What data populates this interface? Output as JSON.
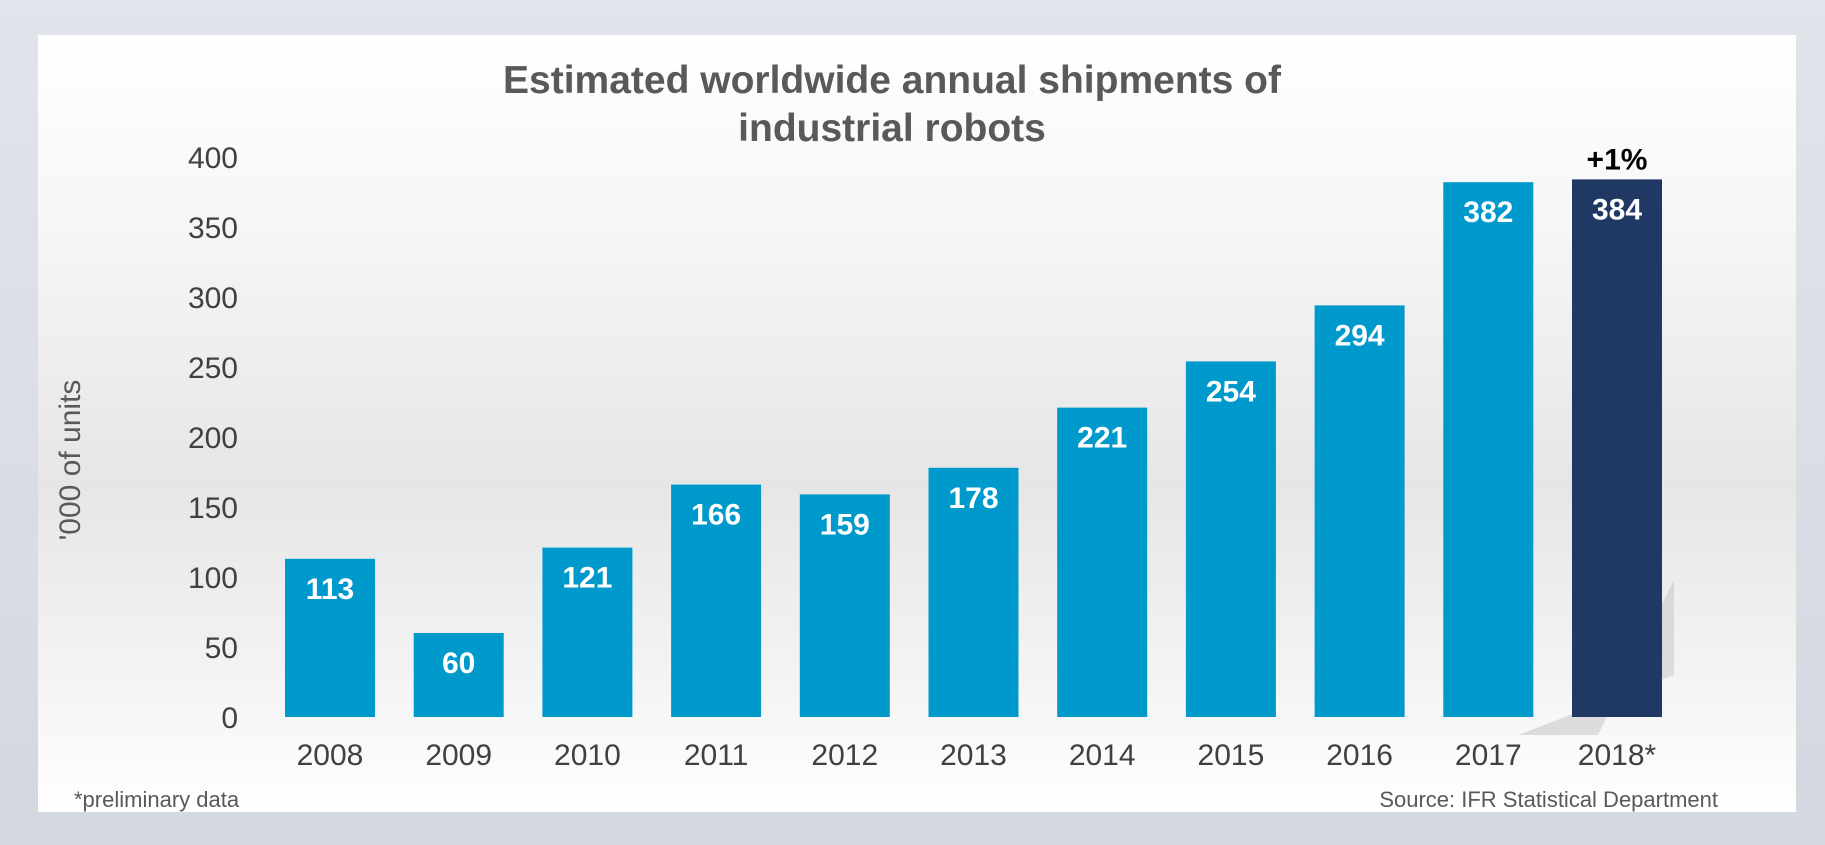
{
  "chart_data": {
    "type": "bar",
    "title_lines": [
      "Estimated worldwide annual shipments of",
      "industrial robots"
    ],
    "ylabel": "'000 of units",
    "xlabel": "",
    "ylim": [
      0,
      400
    ],
    "yticks": [
      "0",
      "50",
      "100",
      "150",
      "200",
      "250",
      "300",
      "350",
      "400"
    ],
    "ytick_values": [
      0,
      50,
      100,
      150,
      200,
      250,
      300,
      350,
      400
    ],
    "categories": [
      "2008",
      "2009",
      "2010",
      "2011",
      "2012",
      "2013",
      "2014",
      "2015",
      "2016",
      "2017",
      "2018*"
    ],
    "values": [
      113,
      60,
      121,
      166,
      159,
      178,
      221,
      254,
      294,
      382,
      384
    ],
    "value_labels": [
      "113",
      "60",
      "121",
      "166",
      "159",
      "178",
      "221",
      "254",
      "294",
      "382",
      "384"
    ],
    "highlight_index": 10,
    "growth_annotation": "+1%",
    "legend": "none",
    "grid": false
  },
  "colors": {
    "bar": "#0099cc",
    "highlight_bar": "#1f3864",
    "data_label": "#ffffff",
    "axis_text": "#404040",
    "title": "#595959"
  },
  "footer": {
    "note": "*preliminary data",
    "source": "Source: IFR Statistical Department"
  }
}
